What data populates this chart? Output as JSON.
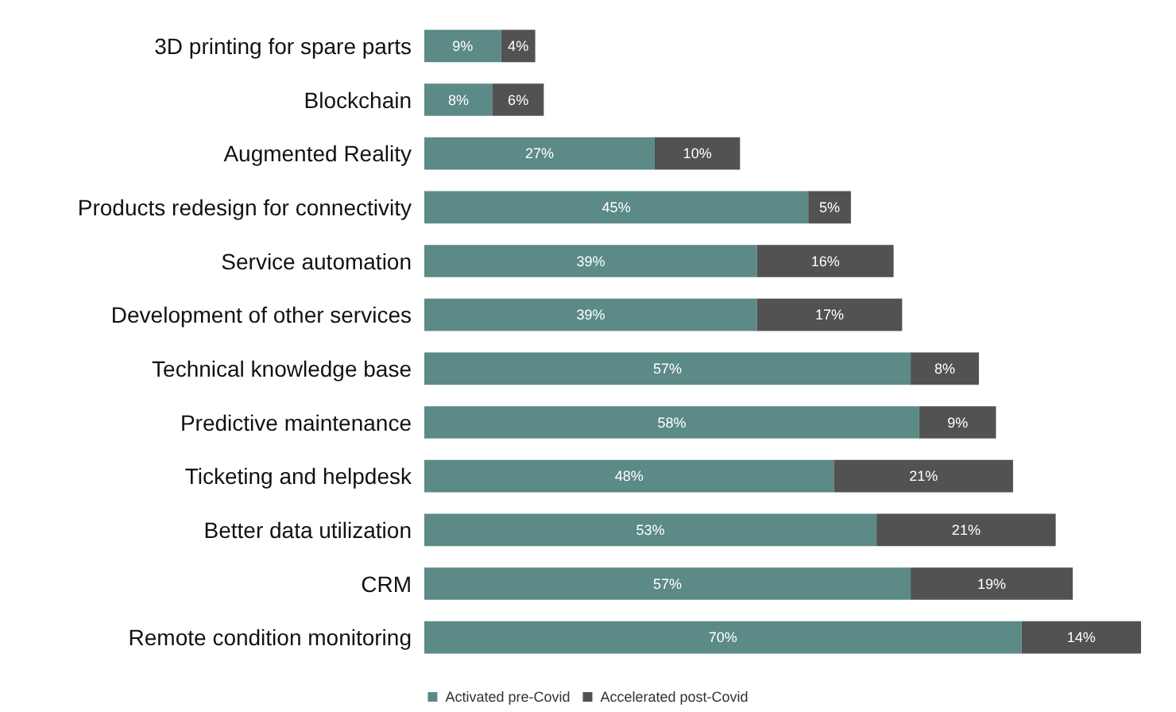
{
  "chart_data": {
    "type": "bar",
    "orientation": "horizontal",
    "stacked": true,
    "legend": "bottom",
    "tick_labels": "y",
    "categories": [
      "3D printing for spare parts",
      "Blockchain",
      "Augmented Reality",
      "Products redesign for connectivity",
      "Service automation",
      "Development of other services",
      "Technical knowledge base",
      "Predictive maintenance",
      "Ticketing and helpdesk",
      "Better data utilization",
      "CRM",
      "Remote condition monitoring"
    ],
    "series": [
      {
        "name": "Activated pre-Covid",
        "color": "#5b8a87",
        "values": [
          9,
          8,
          27,
          45,
          39,
          39,
          57,
          58,
          48,
          53,
          57,
          70
        ],
        "value_labels": [
          "9%",
          "8%",
          "27%",
          "45%",
          "39%",
          "39%",
          "57%",
          "58%",
          "48%",
          "53%",
          "57%",
          "70%"
        ]
      },
      {
        "name": "Accelerated post-Covid",
        "color": "#525252",
        "values": [
          4,
          6,
          10,
          5,
          16,
          17,
          8,
          9,
          21,
          21,
          19,
          14
        ],
        "value_labels": [
          "4%",
          "6%",
          "10%",
          "5%",
          "16%",
          "17%",
          "8%",
          "9%",
          "21%",
          "21%",
          "19%",
          "14%"
        ]
      }
    ]
  }
}
